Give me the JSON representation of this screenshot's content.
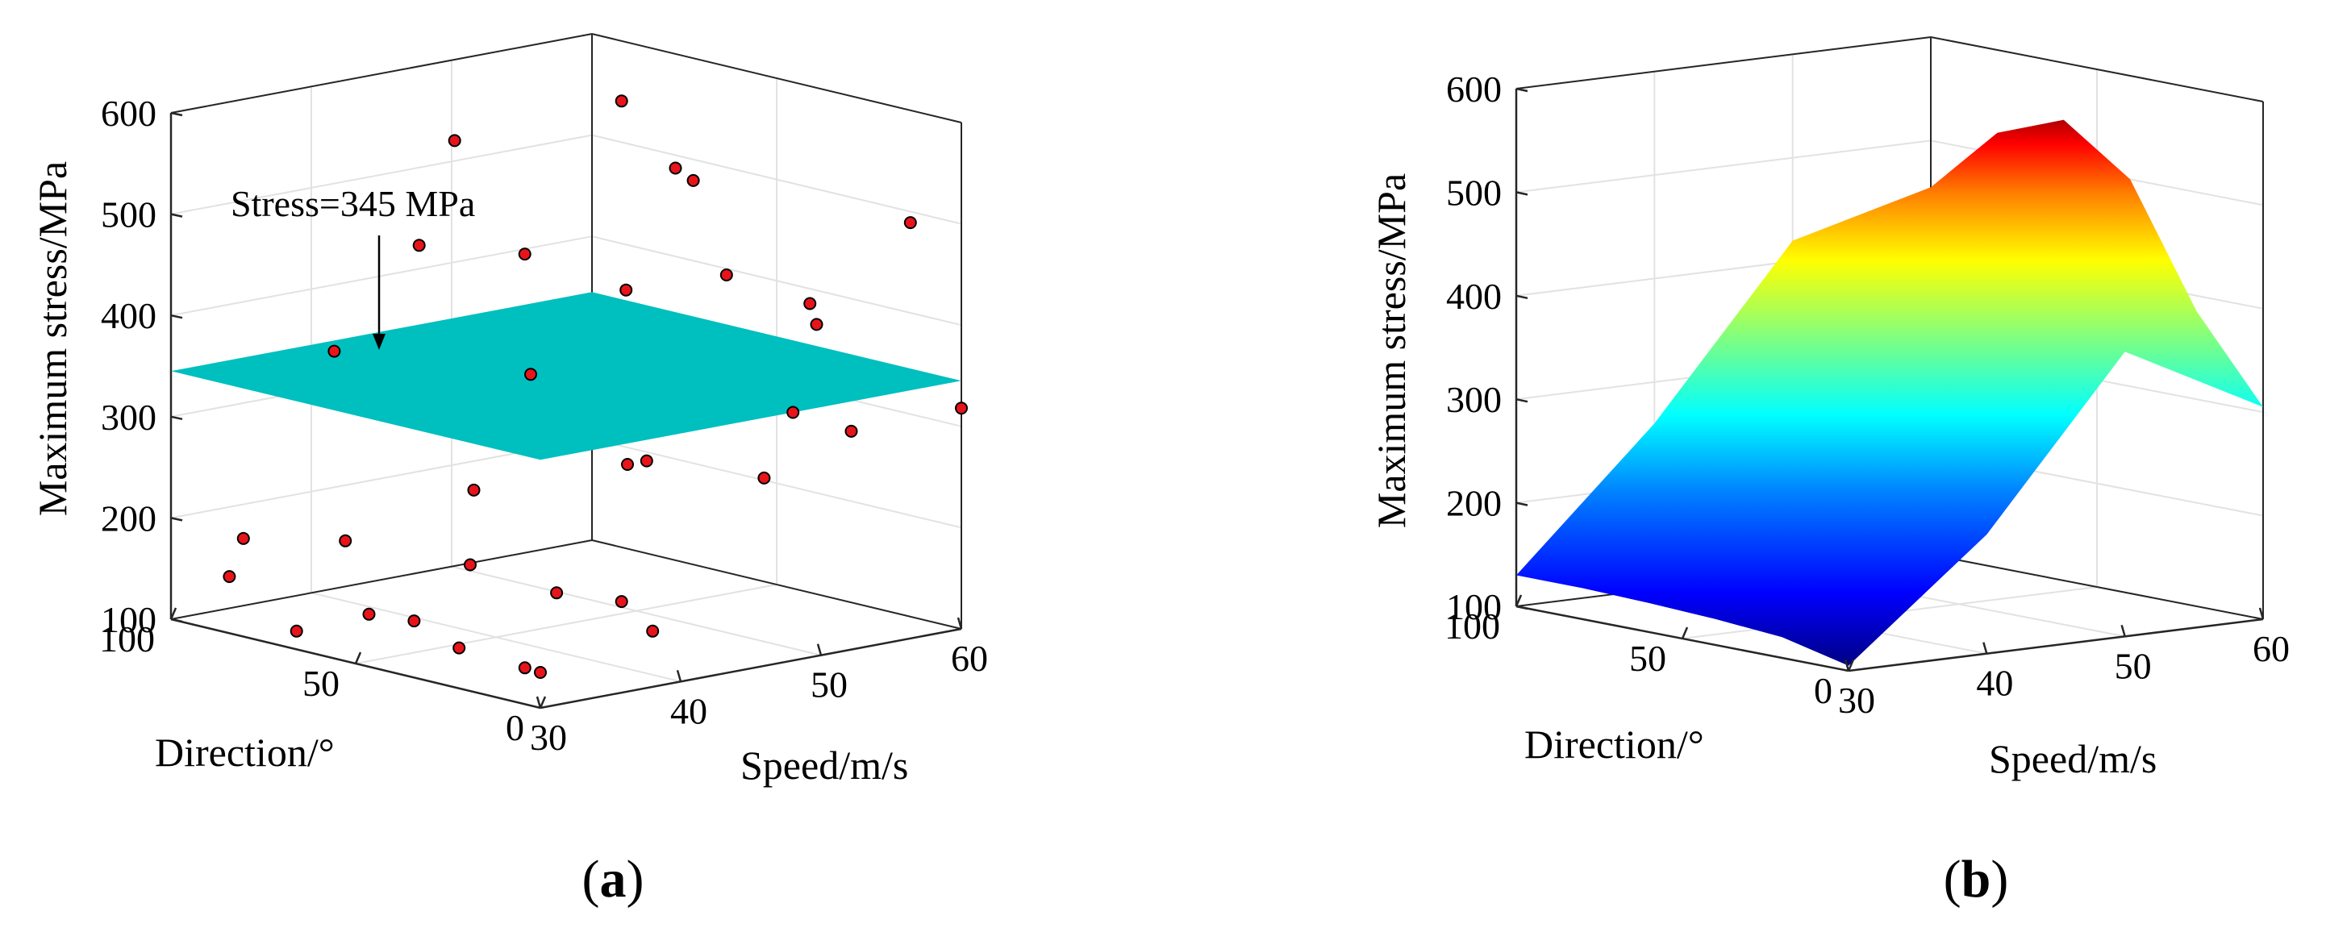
{
  "figure": {
    "panels": [
      {
        "label_open": "(",
        "label_letter": "a",
        "label_close": ")"
      },
      {
        "label_open": "(",
        "label_letter": "b",
        "label_close": ")"
      }
    ]
  },
  "chart_data": [
    {
      "type": "scatter",
      "title": "",
      "zlabel": "Maximum stress/MPa",
      "xlabel": "Speed/m/s",
      "ylabel": "Direction/°",
      "xlim": [
        30,
        60
      ],
      "ylim": [
        0,
        100
      ],
      "zlim": [
        100,
        600
      ],
      "xticks": [
        "30",
        "40",
        "50",
        "60"
      ],
      "yticks": [
        "0",
        "50",
        "100"
      ],
      "zticks": [
        "100",
        "200",
        "300",
        "400",
        "500",
        "600"
      ],
      "grid": true,
      "marker_color": "#e8141b",
      "plane": {
        "z": 345,
        "color": "#00bfbf"
      },
      "annotation": "Stress=345 MPa",
      "points": [
        {
          "x": 60,
          "y": 0,
          "z": 318
        },
        {
          "x": 30,
          "y": 0,
          "z": 135
        },
        {
          "x": 31,
          "y": 8,
          "z": 130
        },
        {
          "x": 30,
          "y": 22,
          "z": 140
        },
        {
          "x": 31,
          "y": 38,
          "z": 150
        },
        {
          "x": 32,
          "y": 54,
          "z": 140
        },
        {
          "x": 30,
          "y": 66,
          "z": 118
        },
        {
          "x": 31,
          "y": 88,
          "z": 150
        },
        {
          "x": 32,
          "y": 88,
          "z": 185
        },
        {
          "x": 34,
          "y": 68,
          "z": 195
        },
        {
          "x": 35,
          "y": 38,
          "z": 195
        },
        {
          "x": 38,
          "y": 26,
          "z": 170
        },
        {
          "x": 40,
          "y": 16,
          "z": 165
        },
        {
          "x": 40,
          "y": 56,
          "z": 240
        },
        {
          "x": 42,
          "y": 22,
          "z": 290
        },
        {
          "x": 38,
          "y": 0,
          "z": 155
        },
        {
          "x": 39,
          "y": 90,
          "z": 350
        },
        {
          "x": 41,
          "y": 62,
          "z": 340
        },
        {
          "x": 44,
          "y": 86,
          "z": 445
        },
        {
          "x": 43,
          "y": 52,
          "z": 350
        },
        {
          "x": 44,
          "y": 30,
          "z": 450
        },
        {
          "x": 43,
          "y": 8,
          "z": 580
        },
        {
          "x": 46,
          "y": 84,
          "z": 545
        },
        {
          "x": 47,
          "y": 36,
          "z": 300
        },
        {
          "x": 48,
          "y": 0,
          "z": 345
        },
        {
          "x": 48,
          "y": 18,
          "z": 465
        },
        {
          "x": 50,
          "y": 54,
          "z": 600
        },
        {
          "x": 51,
          "y": 84,
          "z": 420
        },
        {
          "x": 55,
          "y": 22,
          "z": 415
        },
        {
          "x": 56,
          "y": 70,
          "z": 215
        },
        {
          "x": 57,
          "y": 42,
          "z": 220
        },
        {
          "x": 56,
          "y": 24,
          "z": 390
        },
        {
          "x": 57,
          "y": 66,
          "z": 505
        },
        {
          "x": 59,
          "y": 10,
          "z": 495
        },
        {
          "x": 59,
          "y": 26,
          "z": 275
        }
      ]
    },
    {
      "type": "surface",
      "title": "",
      "zlabel": "Maximum stress/MPa",
      "xlabel": "Speed/m/s",
      "ylabel": "Direction/°",
      "xlim": [
        30,
        60
      ],
      "ylim": [
        0,
        100
      ],
      "zlim": [
        100,
        600
      ],
      "xticks": [
        "30",
        "40",
        "50",
        "60"
      ],
      "yticks": [
        "0",
        "50",
        "100"
      ],
      "zticks": [
        "100",
        "200",
        "300",
        "400",
        "500",
        "600"
      ],
      "grid": true,
      "colormap": "jet",
      "speed": [
        30,
        40,
        50,
        60
      ],
      "direction": [
        0,
        20,
        40,
        60,
        80,
        100
      ],
      "stress": [
        [
          105,
          120,
          125,
          128,
          130,
          130
        ],
        [
          215,
          250,
          270,
          275,
          270,
          260
        ],
        [
          375,
          450,
          500,
          505,
          470,
          420
        ],
        [
          305,
          385,
          500,
          545,
          520,
          455
        ]
      ]
    }
  ]
}
